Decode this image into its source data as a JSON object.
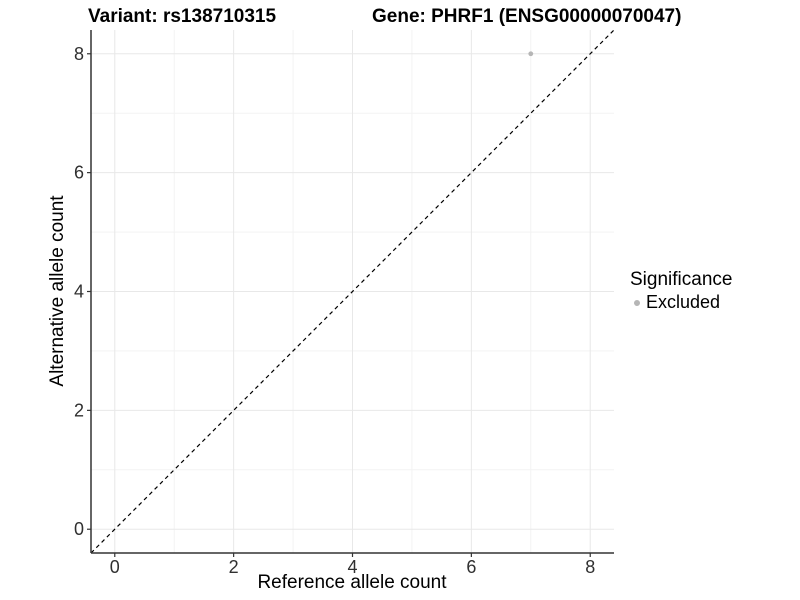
{
  "chart_data": {
    "type": "scatter",
    "title_left": "Variant: rs138710315",
    "title_right": "Gene: PHRF1 (ENSG00000070047)",
    "xlabel": "Reference allele count",
    "ylabel": "Alternative allele count",
    "xlim": [
      -0.4,
      8.4
    ],
    "ylim": [
      -0.4,
      8.4
    ],
    "x_ticks": [
      0,
      2,
      4,
      6,
      8
    ],
    "y_ticks": [
      0,
      2,
      4,
      6,
      8
    ],
    "x_minor_gridlines": [
      1,
      3,
      5,
      7
    ],
    "y_minor_gridlines": [
      1,
      3,
      5,
      7
    ],
    "grid": "on",
    "series": [
      {
        "name": "Excluded",
        "color": "#b6b6b6",
        "points": [
          {
            "x": 7,
            "y": 8
          }
        ]
      }
    ],
    "reference_line": {
      "kind": "identity y=x",
      "style": "dashed",
      "color": "#000000",
      "from": [
        -0.4,
        -0.4
      ],
      "to": [
        8.4,
        8.4
      ]
    },
    "legend": {
      "title": "Significance",
      "position": "right",
      "items": [
        {
          "label": "Excluded",
          "color": "#b6b6b6"
        }
      ]
    },
    "style_colors": {
      "axis_line": "#333333",
      "tick_text": "#303030",
      "grid_major": "#e8e8e8",
      "grid_minor": "#f3f3f3",
      "background": "#ffffff"
    }
  }
}
